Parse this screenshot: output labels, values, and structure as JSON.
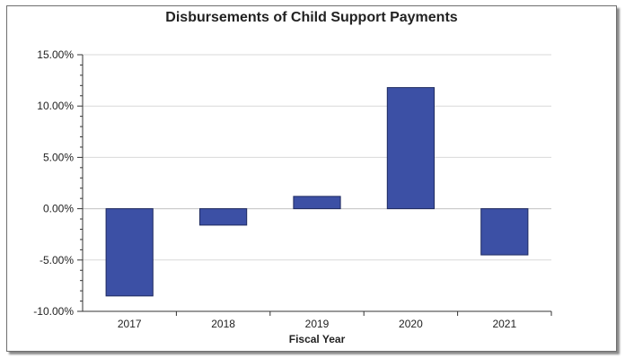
{
  "chart_data": {
    "type": "bar",
    "title": "Disbursements of Child Support Payments",
    "xlabel": "Fiscal Year",
    "ylabel": "",
    "categories": [
      "2017",
      "2018",
      "2019",
      "2020",
      "2021"
    ],
    "values": [
      -8.5,
      -1.6,
      1.2,
      11.8,
      -4.5
    ],
    "ylim": [
      -10,
      15
    ],
    "yticks": [
      -10,
      -5,
      0,
      5,
      10,
      15
    ],
    "ytick_labels": [
      "-10.00%",
      "-5.00%",
      "0.00%",
      "5.00%",
      "10.00%",
      "15.00%"
    ],
    "grid": true,
    "legend": "none",
    "bar_color": "#3c50a5",
    "bar_edge_color": "#1e2a60"
  }
}
